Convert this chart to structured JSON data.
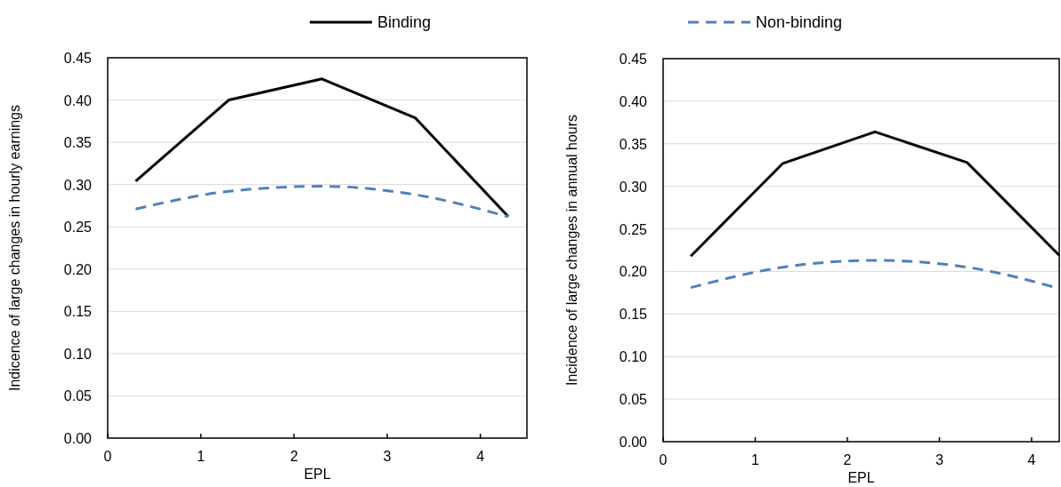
{
  "chart_data": [
    {
      "type": "line",
      "xlabel": "EPL",
      "ylabel": "Indicence of large changes in hourly earnings",
      "x": [
        0.3,
        1.3,
        2.3,
        3.3,
        4.3
      ],
      "xlim": [
        0,
        4.5
      ],
      "xticks": [
        0,
        1,
        2,
        3,
        4
      ],
      "ylim": [
        0,
        0.45
      ],
      "yticks": [
        {
          "value": 0,
          "label": "0.00"
        },
        {
          "value": 0.05,
          "label": "0.05"
        },
        {
          "value": 0.1,
          "label": "0.10"
        },
        {
          "value": 0.15,
          "label": "0.15"
        },
        {
          "value": 0.2,
          "label": "0.20"
        },
        {
          "value": 0.25,
          "label": "0.25"
        },
        {
          "value": 0.3,
          "label": "0.30"
        },
        {
          "value": 0.35,
          "label": "0.35"
        },
        {
          "value": 0.4,
          "label": "0.40"
        },
        {
          "value": 0.45,
          "label": "0.45"
        }
      ],
      "grid": "y",
      "legend": "top",
      "series": [
        {
          "name": "Binding",
          "color": "#000000",
          "line_style": "solid",
          "values": [
            0.304,
            0.4,
            0.425,
            0.379,
            0.262
          ]
        },
        {
          "name": "Non-binding",
          "color": "#4f81bd",
          "line_style": "dashed",
          "values": [
            0.271,
            0.292,
            0.298,
            0.288,
            0.262
          ]
        }
      ]
    },
    {
      "type": "line",
      "xlabel": "EPL",
      "ylabel": "Incidence of large changes in annual hours",
      "x": [
        0.3,
        1.3,
        2.3,
        3.3,
        4.3
      ],
      "xlim": [
        0,
        4.3
      ],
      "xticks": [
        0,
        1,
        2,
        3,
        4
      ],
      "ylim": [
        0,
        0.45
      ],
      "yticks": [
        {
          "value": 0,
          "label": "0.00"
        },
        {
          "value": 0.05,
          "label": "0.05"
        },
        {
          "value": 0.1,
          "label": "0.10"
        },
        {
          "value": 0.15,
          "label": "0.15"
        },
        {
          "value": 0.2,
          "label": "0.20"
        },
        {
          "value": 0.25,
          "label": "0.25"
        },
        {
          "value": 0.3,
          "label": "0.30"
        },
        {
          "value": 0.35,
          "label": "0.35"
        },
        {
          "value": 0.4,
          "label": "0.40"
        },
        {
          "value": 0.45,
          "label": "0.45"
        }
      ],
      "grid": "y",
      "series": [
        {
          "color": "#000000",
          "line_style": "solid",
          "values": [
            0.218,
            0.327,
            0.364,
            0.328,
            0.219
          ]
        },
        {
          "color": "#4f81bd",
          "line_style": "dashed",
          "values": [
            0.181,
            0.205,
            0.213,
            0.205,
            0.18
          ]
        }
      ]
    }
  ]
}
